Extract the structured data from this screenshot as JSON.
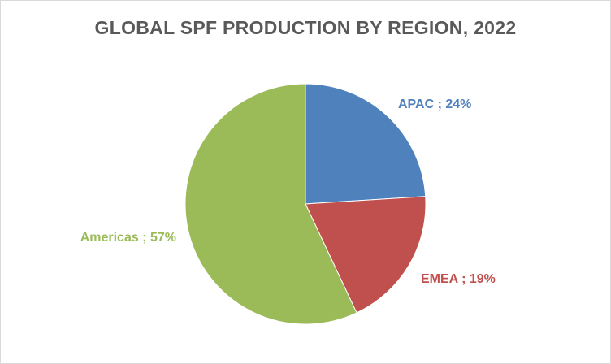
{
  "chart_data": {
    "type": "pie",
    "title": "GLOBAL SPF PRODUCTION BY REGION, 2022",
    "legend": "none",
    "slices": [
      {
        "label": "APAC",
        "value": 24,
        "display": "APAC ; 24%",
        "color": "#4f81bd"
      },
      {
        "label": "EMEA",
        "value": 19,
        "display": "EMEA ; 19%",
        "color": "#c0504d"
      },
      {
        "label": "Americas",
        "value": 57,
        "display": "Americas ; 57%",
        "color": "#9bbb59"
      }
    ]
  }
}
